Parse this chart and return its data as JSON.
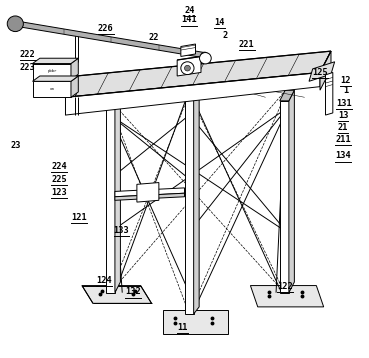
{
  "bg_color": "#ffffff",
  "line_color": "#000000",
  "lw": 0.7,
  "fig_width": 3.69,
  "fig_height": 3.58,
  "dpi": 100,
  "label_data": {
    "226": [
      0.285,
      0.925,
      true
    ],
    "22": [
      0.415,
      0.897,
      false
    ],
    "24": [
      0.513,
      0.975,
      true
    ],
    "141": [
      0.513,
      0.948,
      true
    ],
    "14": [
      0.595,
      0.94,
      true
    ],
    "2": [
      0.61,
      0.905,
      false
    ],
    "221": [
      0.67,
      0.878,
      true
    ],
    "125": [
      0.87,
      0.8,
      true
    ],
    "12": [
      0.94,
      0.778,
      true
    ],
    "1": [
      0.94,
      0.75,
      false
    ],
    "131": [
      0.935,
      0.712,
      true
    ],
    "13": [
      0.933,
      0.678,
      true
    ],
    "21": [
      0.933,
      0.645,
      true
    ],
    "211": [
      0.933,
      0.612,
      true
    ],
    "134": [
      0.933,
      0.565,
      true
    ],
    "222": [
      0.072,
      0.85,
      true
    ],
    "223": [
      0.072,
      0.815,
      false
    ],
    "23": [
      0.04,
      0.595,
      false
    ],
    "224": [
      0.158,
      0.535,
      true
    ],
    "225": [
      0.158,
      0.5,
      true
    ],
    "123": [
      0.158,
      0.462,
      true
    ],
    "121": [
      0.212,
      0.392,
      true
    ],
    "133": [
      0.328,
      0.355,
      true
    ],
    "124": [
      0.28,
      0.215,
      true
    ],
    "132": [
      0.36,
      0.182,
      true
    ],
    "11": [
      0.495,
      0.082,
      true
    ],
    "122": [
      0.775,
      0.198,
      true
    ]
  }
}
